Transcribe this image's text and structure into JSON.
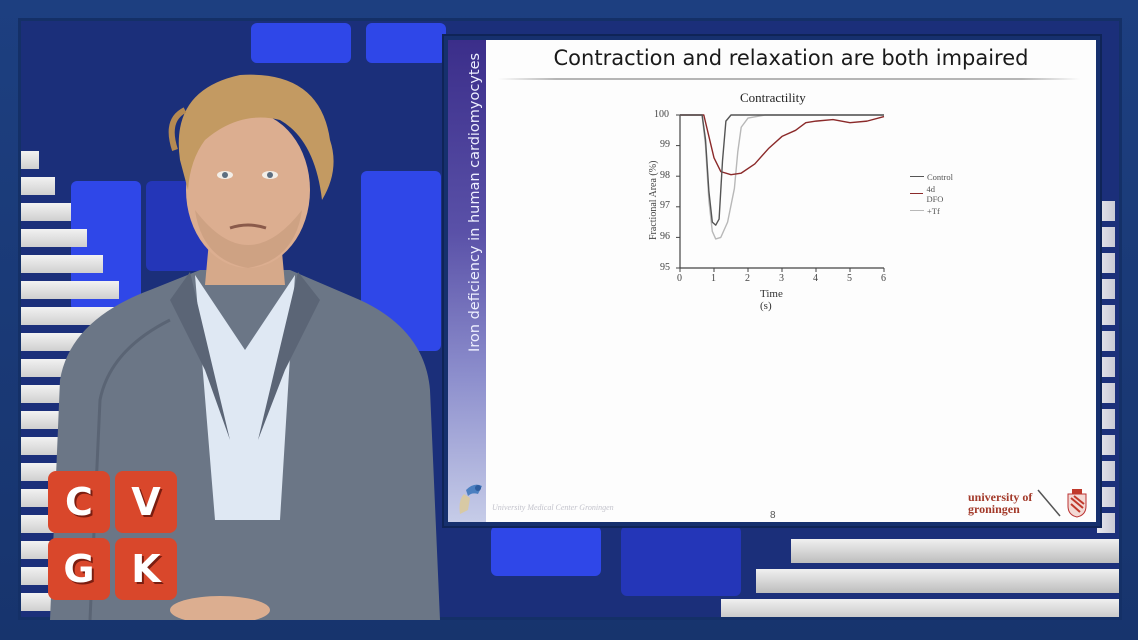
{
  "video": {
    "channel_logo": {
      "tiles": [
        "C",
        "V",
        "G",
        "K"
      ],
      "color": "#d9472b"
    },
    "presenter": "speaker-in-grey-suit"
  },
  "slide": {
    "side_label": "Iron deficiency in human cardiomyocytes",
    "title": "Contraction and relaxation are both impaired",
    "page_number": "8",
    "footer_left": "University Medical Center Groningen",
    "footer_right_line1": "university of",
    "footer_right_line2": "groningen",
    "colors": {
      "side_band": "#4a3f9e",
      "brand_red": "#a33a2a"
    }
  },
  "chart_data": {
    "type": "line",
    "title": "Contractility",
    "xlabel": "Time (s)",
    "ylabel": "Fractional Area (%)",
    "xlim": [
      0,
      6
    ],
    "ylim": [
      95,
      100
    ],
    "xticks": [
      "0",
      "1",
      "2",
      "3",
      "4",
      "5",
      "6"
    ],
    "yticks": [
      "95",
      "96",
      "97",
      "98",
      "99",
      "100"
    ],
    "grid": false,
    "legend_position": "right",
    "series": [
      {
        "name": "Control",
        "color": "#555555",
        "x": [
          0,
          0.65,
          0.75,
          0.85,
          0.95,
          1.05,
          1.15,
          1.25,
          1.35,
          1.5,
          2.0,
          6.0
        ],
        "y": [
          100,
          100,
          99.2,
          97.5,
          96.5,
          96.4,
          96.6,
          98.5,
          99.8,
          100,
          100,
          100
        ]
      },
      {
        "name": "4d DFO",
        "color": "#8b2a2a",
        "x": [
          0,
          0.7,
          0.85,
          1.0,
          1.2,
          1.5,
          1.8,
          2.2,
          2.6,
          3.0,
          3.4,
          3.7,
          4.0,
          4.5,
          5.0,
          5.5,
          6.0
        ],
        "y": [
          100,
          100,
          99.3,
          98.6,
          98.15,
          98.05,
          98.1,
          98.4,
          98.9,
          99.3,
          99.5,
          99.75,
          99.8,
          99.85,
          99.75,
          99.8,
          99.95
        ]
      },
      {
        "name": "+Tf",
        "color": "#b8b8b8",
        "x": [
          0,
          0.65,
          0.75,
          0.85,
          0.95,
          1.05,
          1.2,
          1.4,
          1.6,
          1.7,
          1.8,
          2.0,
          2.5,
          3.0,
          6.0
        ],
        "y": [
          100,
          100,
          99.0,
          97.2,
          96.2,
          95.95,
          96.0,
          96.5,
          97.6,
          98.8,
          99.6,
          99.9,
          100,
          100,
          100
        ]
      }
    ]
  }
}
